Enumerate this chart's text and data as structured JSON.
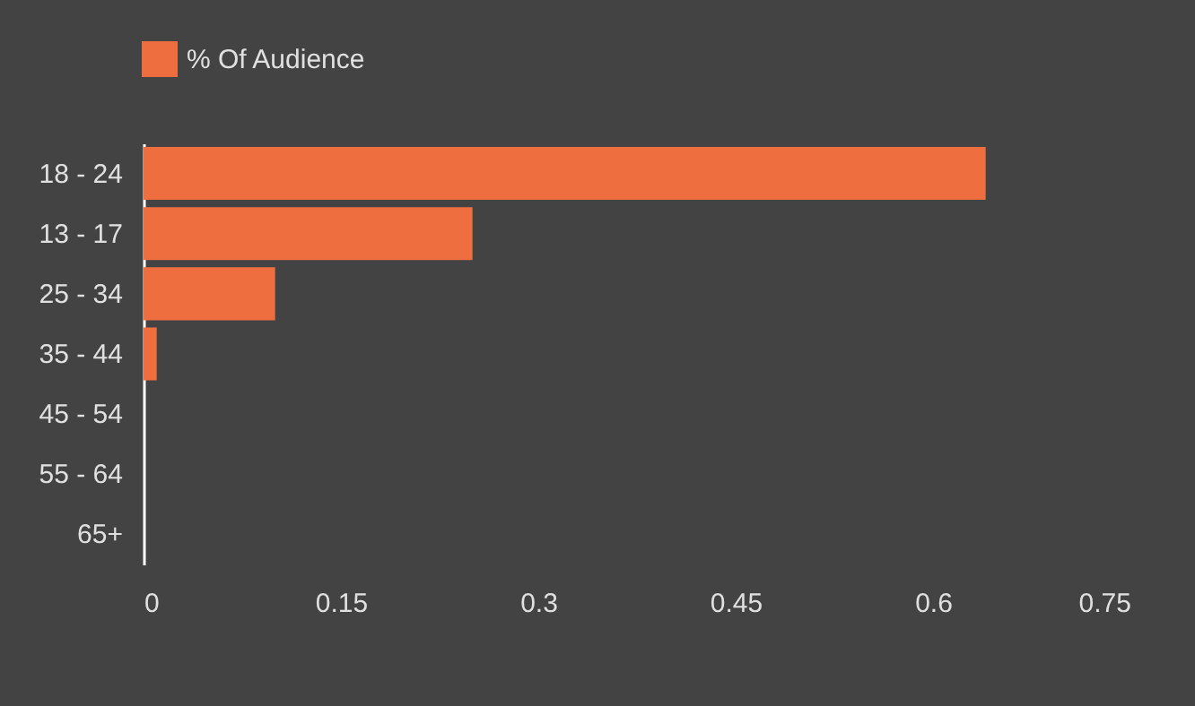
{
  "chart_data": {
    "type": "bar",
    "orientation": "horizontal",
    "categories": [
      "18 - 24",
      "13 - 17",
      "25 - 34",
      "35 - 44",
      "45 - 54",
      "55 - 64",
      "65+"
    ],
    "series": [
      {
        "name": "% Of Audience",
        "color": "#ee6e40",
        "values": [
          0.64,
          0.25,
          0.1,
          0.01,
          0,
          0,
          0
        ]
      }
    ],
    "xlim": [
      0,
      0.75
    ],
    "xticks": [
      0,
      0.15,
      0.3,
      0.45,
      0.6,
      0.75
    ],
    "grid": false,
    "legend": "top left"
  }
}
